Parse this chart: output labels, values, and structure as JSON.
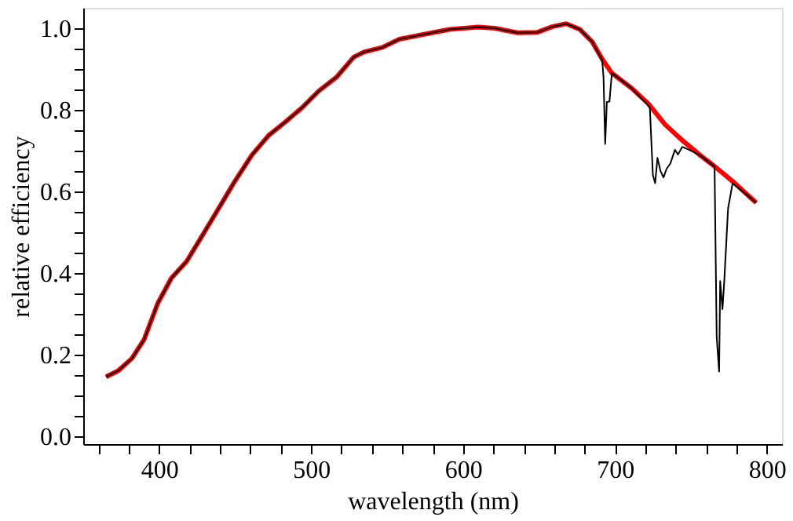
{
  "chart_data": {
    "type": "line",
    "xlabel": "wavelength (nm)",
    "ylabel": "relative efficiency",
    "xlim": [
      350,
      810
    ],
    "ylim": [
      -0.02,
      1.05
    ],
    "xticks": [
      {
        "value": 360,
        "label": null
      },
      {
        "value": 380,
        "label": null
      },
      400,
      {
        "value": 420,
        "label": null
      },
      {
        "value": 440,
        "label": null
      },
      {
        "value": 460,
        "label": null
      },
      {
        "value": 480,
        "label": null
      },
      500,
      {
        "value": 520,
        "label": null
      },
      {
        "value": 540,
        "label": null
      },
      {
        "value": 560,
        "label": null
      },
      {
        "value": 580,
        "label": null
      },
      600,
      {
        "value": 620,
        "label": null
      },
      {
        "value": 640,
        "label": null
      },
      {
        "value": 660,
        "label": null
      },
      {
        "value": 680,
        "label": null
      },
      700,
      {
        "value": 720,
        "label": null
      },
      {
        "value": 740,
        "label": null
      },
      {
        "value": 760,
        "label": null
      },
      {
        "value": 780,
        "label": null
      },
      800
    ],
    "yticks": [
      {
        "value": 0,
        "label": "0.0"
      },
      {
        "value": 0.05,
        "label": null
      },
      {
        "value": 0.1,
        "label": null
      },
      {
        "value": 0.15,
        "label": null
      },
      0.2,
      {
        "value": 0.25,
        "label": null
      },
      {
        "value": 0.3,
        "label": null
      },
      {
        "value": 0.35,
        "label": null
      },
      0.4,
      {
        "value": 0.45,
        "label": null
      },
      {
        "value": 0.5,
        "label": null
      },
      {
        "value": 0.55,
        "label": null
      },
      0.6,
      {
        "value": 0.65,
        "label": null
      },
      {
        "value": 0.7,
        "label": null
      },
      {
        "value": 0.75,
        "label": null
      },
      0.8,
      {
        "value": 0.85,
        "label": null
      },
      {
        "value": 0.9,
        "label": null
      },
      {
        "value": 0.95,
        "label": null
      },
      {
        "value": 1,
        "label": "1.0"
      }
    ],
    "grid": false,
    "line_style": "solid",
    "marker": "none",
    "series": [
      {
        "color": "#000000",
        "x": [
          365,
          373,
          382,
          390,
          399,
          408,
          418,
          427,
          438,
          449,
          461,
          472,
          483,
          494,
          505,
          517,
          528,
          535,
          547,
          558,
          573,
          591,
          610,
          621,
          636,
          649,
          659,
          668,
          677,
          685,
          691.6,
          692.5,
          693.6,
          694.7,
          696.4,
          698,
          711,
          721.5,
          723,
          725,
          726.5,
          728,
          730,
          732,
          734,
          736.5,
          739.5,
          741.5,
          744.3,
          748.8,
          755.8,
          765.6,
          767,
          768.6,
          769.3,
          770.8,
          772,
          774.5,
          777.5,
          793
        ],
        "values": [
          0.145,
          0.16,
          0.19,
          0.236,
          0.325,
          0.387,
          0.428,
          0.483,
          0.551,
          0.62,
          0.689,
          0.737,
          0.77,
          0.805,
          0.846,
          0.881,
          0.929,
          0.942,
          0.953,
          0.973,
          0.984,
          0.997,
          1.003,
          1.0,
          0.989,
          0.99,
          1.004,
          1.011,
          0.997,
          0.967,
          0.922,
          0.88,
          0.716,
          0.819,
          0.82,
          0.89,
          0.853,
          0.812,
          0.805,
          0.64,
          0.62,
          0.682,
          0.65,
          0.634,
          0.655,
          0.668,
          0.702,
          0.69,
          0.709,
          0.702,
          0.689,
          0.661,
          0.243,
          0.158,
          0.38,
          0.311,
          0.38,
          0.558,
          0.62,
          0.572
        ]
      },
      {
        "color": "#ff0000",
        "x": [
          365,
          373,
          382,
          390,
          399,
          408,
          418,
          427,
          438,
          449,
          461,
          472,
          483,
          494,
          505,
          517,
          528,
          535,
          547,
          558,
          573,
          591,
          610,
          621,
          636,
          649,
          659,
          668,
          677,
          685,
          692,
          698,
          711,
          722,
          733,
          745,
          756,
          767,
          778,
          793
        ],
        "values": [
          0.145,
          0.16,
          0.19,
          0.236,
          0.325,
          0.387,
          0.428,
          0.483,
          0.551,
          0.62,
          0.689,
          0.737,
          0.77,
          0.805,
          0.846,
          0.881,
          0.929,
          0.942,
          0.953,
          0.973,
          0.984,
          0.997,
          1.003,
          1.0,
          0.989,
          0.99,
          1.004,
          1.011,
          0.997,
          0.967,
          0.922,
          0.89,
          0.853,
          0.815,
          0.764,
          0.723,
          0.689,
          0.657,
          0.623,
          0.572
        ]
      }
    ]
  }
}
